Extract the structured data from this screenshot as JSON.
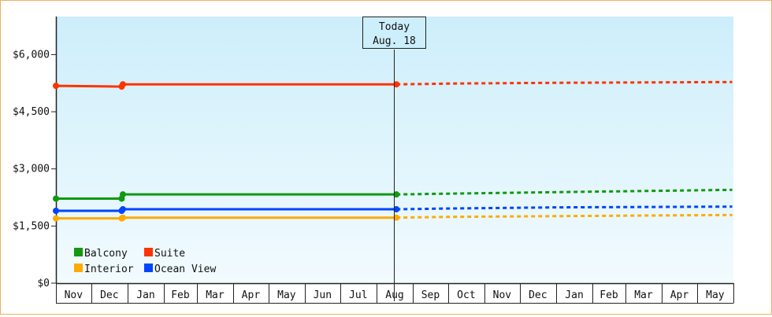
{
  "chart_data": {
    "type": "line",
    "y_ticks": [
      "$0",
      "$1,500",
      "$3,000",
      "$4,500",
      "$6,000"
    ],
    "ylim": [
      0,
      7000
    ],
    "x_months": [
      "Nov",
      "Dec",
      "Jan",
      "Feb",
      "Mar",
      "Apr",
      "May",
      "Jun",
      "Jul",
      "Aug",
      "Sep",
      "Oct",
      "Nov",
      "Dec",
      "Jan",
      "Feb",
      "Mar",
      "Apr",
      "May"
    ],
    "today_marker": {
      "line1": "Today",
      "line2": "Aug. 18"
    },
    "grid": false,
    "legend_position": "bottom-left",
    "series": [
      {
        "name": "Suite",
        "color": "#ff3300",
        "actual": [
          [
            "Nov 1",
            5180
          ],
          [
            "Dec 27",
            5160
          ],
          [
            "Dec 28",
            5220
          ],
          [
            "Aug 18",
            5220
          ]
        ],
        "forecast": [
          [
            "Aug 18",
            5220
          ],
          [
            "Sep 15",
            5230
          ],
          [
            "Oct 1",
            5240
          ],
          [
            "Jan 1",
            5260
          ],
          [
            "May 31",
            5280
          ]
        ]
      },
      {
        "name": "Balcony",
        "color": "#119911",
        "actual": [
          [
            "Nov 1",
            2220
          ],
          [
            "Dec 27",
            2220
          ],
          [
            "Dec 28",
            2330
          ],
          [
            "Aug 18",
            2330
          ]
        ],
        "forecast": [
          [
            "Aug 18",
            2330
          ],
          [
            "Oct 1",
            2350
          ],
          [
            "Jan 1",
            2390
          ],
          [
            "May 31",
            2450
          ]
        ]
      },
      {
        "name": "Ocean View",
        "color": "#0044ff",
        "actual": [
          [
            "Nov 1",
            1900
          ],
          [
            "Dec 27",
            1900
          ],
          [
            "Dec 28",
            1940
          ],
          [
            "Aug 18",
            1940
          ]
        ],
        "forecast": [
          [
            "Aug 18",
            1940
          ],
          [
            "Oct 1",
            1960
          ],
          [
            "Jan 1",
            1990
          ],
          [
            "May 31",
            2010
          ]
        ]
      },
      {
        "name": "Interior",
        "color": "#ffaa00",
        "actual": [
          [
            "Nov 1",
            1700
          ],
          [
            "Dec 27",
            1700
          ],
          [
            "Dec 28",
            1720
          ],
          [
            "Aug 18",
            1720
          ]
        ],
        "forecast": [
          [
            "Aug 18",
            1720
          ],
          [
            "Oct 1",
            1740
          ],
          [
            "Jan 1",
            1760
          ],
          [
            "May 31",
            1790
          ]
        ]
      }
    ],
    "legend": [
      {
        "name": "Balcony",
        "color": "#119911"
      },
      {
        "name": "Suite",
        "color": "#ff3300"
      },
      {
        "name": "Interior",
        "color": "#ffaa00"
      },
      {
        "name": "Ocean View",
        "color": "#0044ff"
      }
    ]
  }
}
